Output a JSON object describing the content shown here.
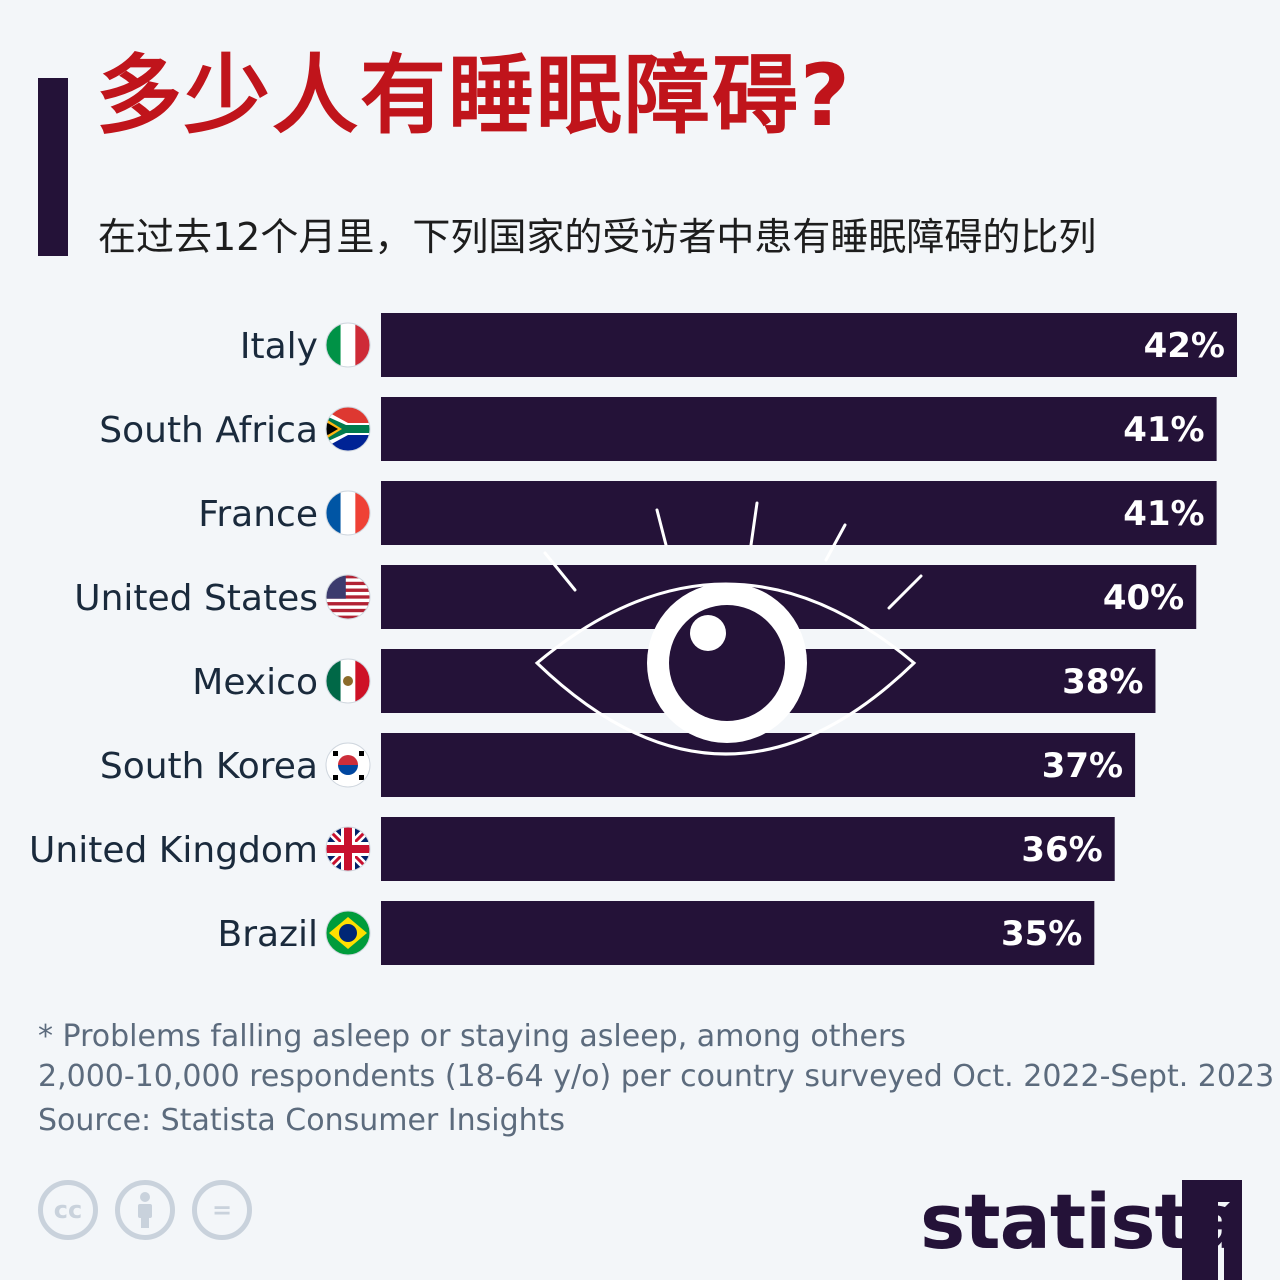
{
  "header": {
    "title": "多少人有睡眠障碍?",
    "subtitle": "在过去12个月里，下列国家的受访者中患有睡眠障碍的比列"
  },
  "chart_data": {
    "type": "bar",
    "orientation": "horizontal",
    "title": "多少人有睡眠障碍?",
    "subtitle": "在过去12个月里，下列国家的受访者中患有睡眠障碍的比列",
    "categories": [
      "Italy",
      "South Africa",
      "France",
      "United States",
      "Mexico",
      "South Korea",
      "United Kingdom",
      "Brazil"
    ],
    "values": [
      42,
      41,
      41,
      40,
      38,
      37,
      36,
      35
    ],
    "value_labels": [
      "42%",
      "41%",
      "41%",
      "40%",
      "38%",
      "37%",
      "36%",
      "35%"
    ],
    "unit": "%",
    "xlim": [
      0,
      42
    ],
    "grid": false,
    "legend": "none",
    "bar_color": "#241238",
    "label_color": "#ffffff"
  },
  "flags": {
    "Italy": "italy-flag-icon",
    "South Africa": "south-africa-flag-icon",
    "France": "france-flag-icon",
    "United States": "united-states-flag-icon",
    "Mexico": "mexico-flag-icon",
    "South Korea": "south-korea-flag-icon",
    "United Kingdom": "united-kingdom-flag-icon",
    "Brazil": "brazil-flag-icon"
  },
  "footer": {
    "note": "* Problems falling asleep or staying asleep, among others",
    "respondents": "2,000-10,000 respondents (18-64 y/o) per country surveyed Oct. 2022-Sept. 2023",
    "source": "Source: Statista Consumer Insights",
    "brand": "statista",
    "license_icons": [
      "cc-icon",
      "attribution-icon",
      "no-derivatives-icon"
    ],
    "license_cc_text": "cc",
    "license_nd_text": "="
  },
  "colors": {
    "title": "#c0141b",
    "accent": "#241238",
    "background": "#f3f6f9",
    "footnote": "#5c6b7d"
  }
}
